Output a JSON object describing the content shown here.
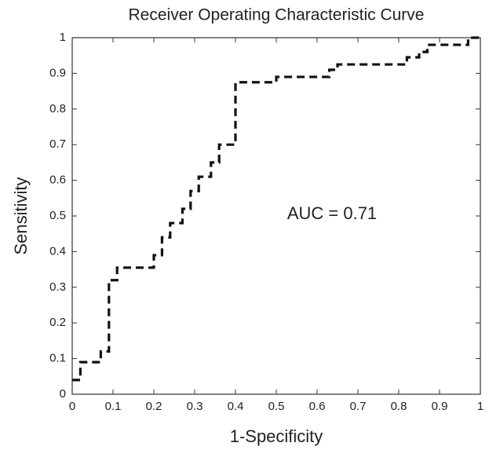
{
  "chart_data": {
    "type": "line",
    "title": "Receiver Operating Characteristic Curve",
    "xlabel": "1-Specificity",
    "ylabel": "Sensitivity",
    "annotation": "AUC = 0.71",
    "xlim": [
      0,
      1
    ],
    "ylim": [
      0,
      1
    ],
    "xticks": [
      0,
      0.1,
      0.2,
      0.3,
      0.4,
      0.5,
      0.6,
      0.7,
      0.8,
      0.9,
      1
    ],
    "yticks": [
      0,
      0.1,
      0.2,
      0.3,
      0.4,
      0.5,
      0.6,
      0.7,
      0.8,
      0.9,
      1
    ],
    "grid": false,
    "series": [
      {
        "color": "#111111",
        "dashed": true,
        "x": [
          0,
          0.02,
          0.02,
          0.07,
          0.07,
          0.09,
          0.09,
          0.11,
          0.11,
          0.2,
          0.2,
          0.22,
          0.22,
          0.24,
          0.24,
          0.27,
          0.27,
          0.29,
          0.29,
          0.31,
          0.31,
          0.34,
          0.34,
          0.36,
          0.36,
          0.4,
          0.4,
          0.5,
          0.5,
          0.63,
          0.63,
          0.65,
          0.65,
          0.82,
          0.82,
          0.85,
          0.85,
          0.87,
          0.87,
          0.97,
          0.97,
          1.0
        ],
        "values": [
          0.04,
          0.04,
          0.09,
          0.09,
          0.12,
          0.12,
          0.32,
          0.32,
          0.355,
          0.355,
          0.39,
          0.39,
          0.44,
          0.44,
          0.48,
          0.48,
          0.52,
          0.52,
          0.57,
          0.57,
          0.61,
          0.61,
          0.65,
          0.65,
          0.7,
          0.7,
          0.875,
          0.875,
          0.89,
          0.89,
          0.91,
          0.91,
          0.925,
          0.925,
          0.945,
          0.945,
          0.96,
          0.96,
          0.98,
          0.98,
          1.0,
          1.0
        ]
      }
    ]
  }
}
